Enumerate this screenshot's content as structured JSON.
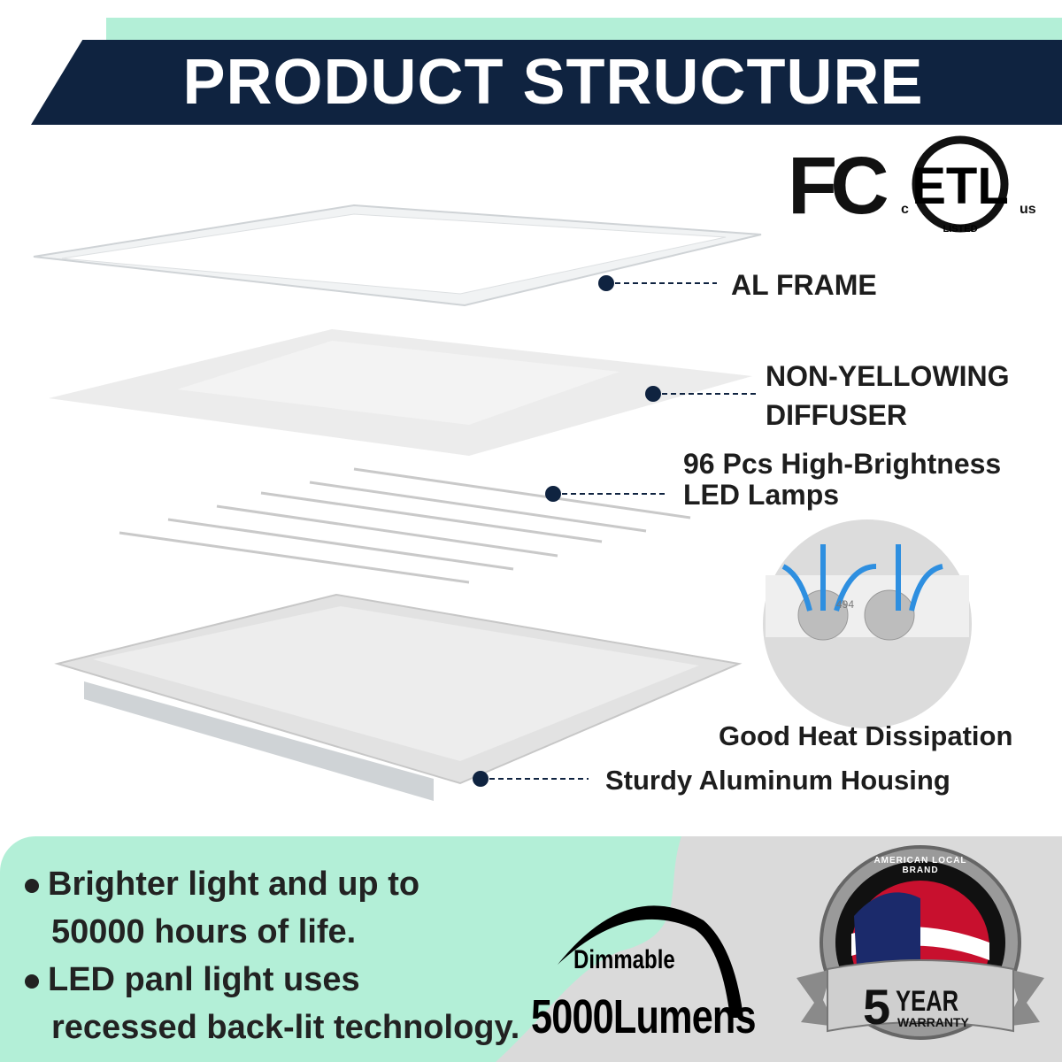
{
  "header": {
    "title": "PRODUCT STRUCTURE"
  },
  "certifications": {
    "fcc": "FC",
    "etl": "ETL",
    "etl_c": "c",
    "etl_us": "us",
    "etl_listed": "LISTED"
  },
  "components": [
    {
      "label": "AL FRAME"
    },
    {
      "label_line1": "NON-YELLOWING",
      "label_line2": "DIFFUSER"
    },
    {
      "label_line1": "96 Pcs High-Brightness",
      "label_line2": "LED Lamps"
    },
    {
      "label": "Sturdy Aluminum Housing"
    }
  ],
  "heat": {
    "label": "Good Heat Dissipation",
    "chip_text": "494"
  },
  "features": [
    {
      "line1": "Brighter light and up to",
      "line2": "50000 hours of life."
    },
    {
      "line1": "LED panl light uses",
      "line2": "recessed back-lit technology."
    }
  ],
  "dimmable": {
    "label": "Dimmable",
    "lumens": "5000Lumens"
  },
  "badge": {
    "arc_text": "AMERICAN LOCAL BRAND",
    "years": "5",
    "year_label": "YEAR",
    "warranty": "WARRANTY"
  },
  "colors": {
    "navy": "#0f2340",
    "mint": "#b3efd7",
    "gray": "#dadada"
  }
}
